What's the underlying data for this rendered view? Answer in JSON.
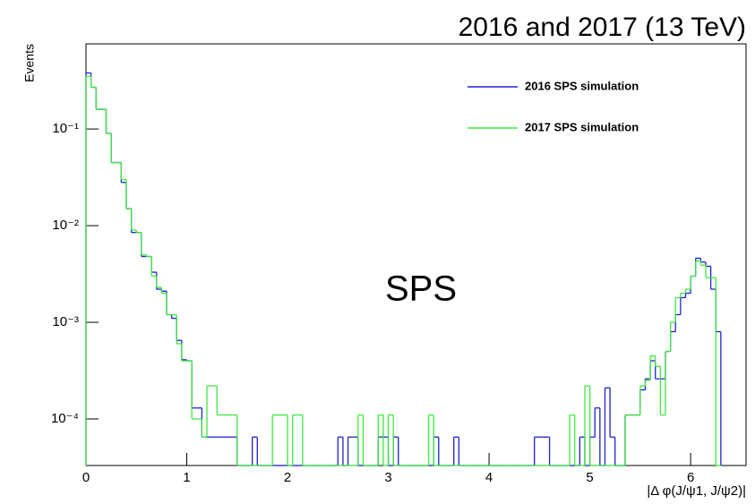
{
  "chart_data": {
    "type": "histogram",
    "title": "2016 and 2017 (13 TeV)",
    "ylabel": "Events",
    "xlabel": "|Δ φ(J/ψ1, J/ψ2)|",
    "annotation": "SPS",
    "log_y": true,
    "xlim": [
      0,
      6.55
    ],
    "xticks": [
      0,
      1,
      2,
      3,
      4,
      5,
      6
    ],
    "ylim": [
      3.3e-05,
      0.76
    ],
    "yticks": [
      {
        "value": 0.0001,
        "label": "10⁻⁴"
      },
      {
        "value": 0.001,
        "label": "10⁻³"
      },
      {
        "value": 0.01,
        "label": "10⁻²"
      },
      {
        "value": 0.1,
        "label": "10⁻¹"
      }
    ],
    "bins": [
      0,
      0.05,
      0.1,
      0.15,
      0.2,
      0.25,
      0.3,
      0.35,
      0.4,
      0.45,
      0.5,
      0.55,
      0.6,
      0.65,
      0.7,
      0.75,
      0.8,
      0.85,
      0.9,
      0.95,
      1,
      1.05,
      1.1,
      1.15,
      1.2,
      1.25,
      1.3,
      1.35,
      1.4,
      1.45,
      1.5,
      1.55,
      1.6,
      1.65,
      1.7,
      1.75,
      1.8,
      1.85,
      1.9,
      1.95,
      2,
      2.05,
      2.1,
      2.15,
      2.2,
      2.25,
      2.3,
      2.35,
      2.4,
      2.45,
      2.5,
      2.55,
      2.6,
      2.65,
      2.7,
      2.75,
      2.8,
      2.85,
      2.9,
      2.95,
      3,
      3.05,
      3.1,
      3.15,
      3.2,
      3.25,
      3.3,
      3.35,
      3.4,
      3.45,
      3.5,
      3.55,
      3.6,
      3.65,
      3.7,
      3.75,
      3.8,
      3.85,
      3.9,
      3.95,
      4,
      4.05,
      4.1,
      4.15,
      4.2,
      4.25,
      4.3,
      4.35,
      4.4,
      4.45,
      4.5,
      4.55,
      4.6,
      4.65,
      4.7,
      4.75,
      4.8,
      4.85,
      4.9,
      4.95,
      5,
      5.05,
      5.1,
      5.15,
      5.2,
      5.25,
      5.3,
      5.35,
      5.4,
      5.45,
      5.5,
      5.55,
      5.6,
      5.65,
      5.7,
      5.75,
      5.8,
      5.85,
      5.9,
      5.95,
      6,
      6.05,
      6.1,
      6.15,
      6.2,
      6.25,
      6.3
    ],
    "series": [
      {
        "name": "2016 SPS simulation",
        "color": "#2020d0",
        "values": [
          0.38,
          0.27,
          0.16,
          0.16,
          0.09,
          0.045,
          0.045,
          0.028,
          0.015,
          0.0085,
          0.0085,
          0.0048,
          0.0048,
          0.0033,
          0.0022,
          0.0021,
          0.0012,
          0.0011,
          0.00065,
          0.00041,
          0.0004,
          0.00013,
          0.00013,
          6.5e-05,
          6.5e-05,
          6.5e-05,
          6.5e-05,
          6.5e-05,
          6.5e-05,
          6.5e-05,
          0,
          0,
          0,
          6.5e-05,
          0,
          0,
          0,
          0,
          0,
          0,
          0,
          0,
          0,
          0,
          0,
          0,
          0,
          0,
          0,
          0,
          6.5e-05,
          0,
          6.5e-05,
          6.5e-05,
          0,
          0,
          0,
          0,
          6.5e-05,
          6.5e-05,
          0,
          6.5e-05,
          0,
          0,
          0,
          0,
          0,
          0,
          0,
          6.5e-05,
          0,
          0,
          0,
          6.5e-05,
          0,
          0,
          0,
          0,
          0,
          0,
          0,
          0,
          0,
          0,
          0,
          0,
          0,
          0,
          0,
          6.5e-05,
          6.5e-05,
          6.5e-05,
          0,
          0,
          0,
          0,
          0,
          0,
          6.5e-05,
          0,
          6.5e-05,
          0.00013,
          0,
          0.00021,
          6.5e-05,
          0,
          0,
          0.00011,
          0.00011,
          0.00011,
          0.0002,
          0.00026,
          0.0004,
          0.00026,
          0.00026,
          0.0005,
          0.0008,
          0.0012,
          0.0018,
          0.002,
          0.003,
          0.0046,
          0.0042,
          0.0038,
          0.0022,
          0.0008
        ]
      },
      {
        "name": "2017 SPS simulation",
        "color": "#40e840",
        "values": [
          0.35,
          0.27,
          0.16,
          0.16,
          0.09,
          0.045,
          0.045,
          0.03,
          0.015,
          0.009,
          0.0085,
          0.005,
          0.0048,
          0.003,
          0.0023,
          0.002,
          0.0012,
          0.0012,
          0.0006,
          0.0004,
          0.0004,
          0.0001,
          0.0001,
          6.5e-05,
          0.00022,
          0.00022,
          0.00011,
          0.00011,
          0.00011,
          0.00011,
          0,
          0,
          0,
          0,
          0,
          0,
          0,
          0.00011,
          0.00011,
          0.00011,
          0,
          0.00011,
          0.00011,
          0,
          0,
          0,
          0,
          0,
          0,
          0,
          0,
          0,
          0,
          0,
          0.00011,
          0,
          0,
          0,
          0.00011,
          0,
          0.00011,
          0,
          0,
          0,
          0,
          0,
          0,
          0,
          0.00011,
          0,
          0,
          0,
          0,
          0,
          0,
          0,
          0,
          0,
          0,
          0,
          0,
          0,
          0,
          0,
          0,
          0,
          0,
          0,
          0,
          0,
          0,
          0,
          0,
          0,
          0,
          0,
          0.00011,
          0,
          0,
          0.00022,
          0,
          0,
          0,
          0,
          0,
          0,
          0,
          0.00011,
          0.00011,
          0.00011,
          0.00022,
          0.00025,
          0.00045,
          0.00035,
          0.00011,
          0.0005,
          0.001,
          0.0018,
          0.002,
          0.0022,
          0.003,
          0.0043,
          0.0039,
          0.0029,
          0.0029,
          0
        ]
      }
    ]
  }
}
